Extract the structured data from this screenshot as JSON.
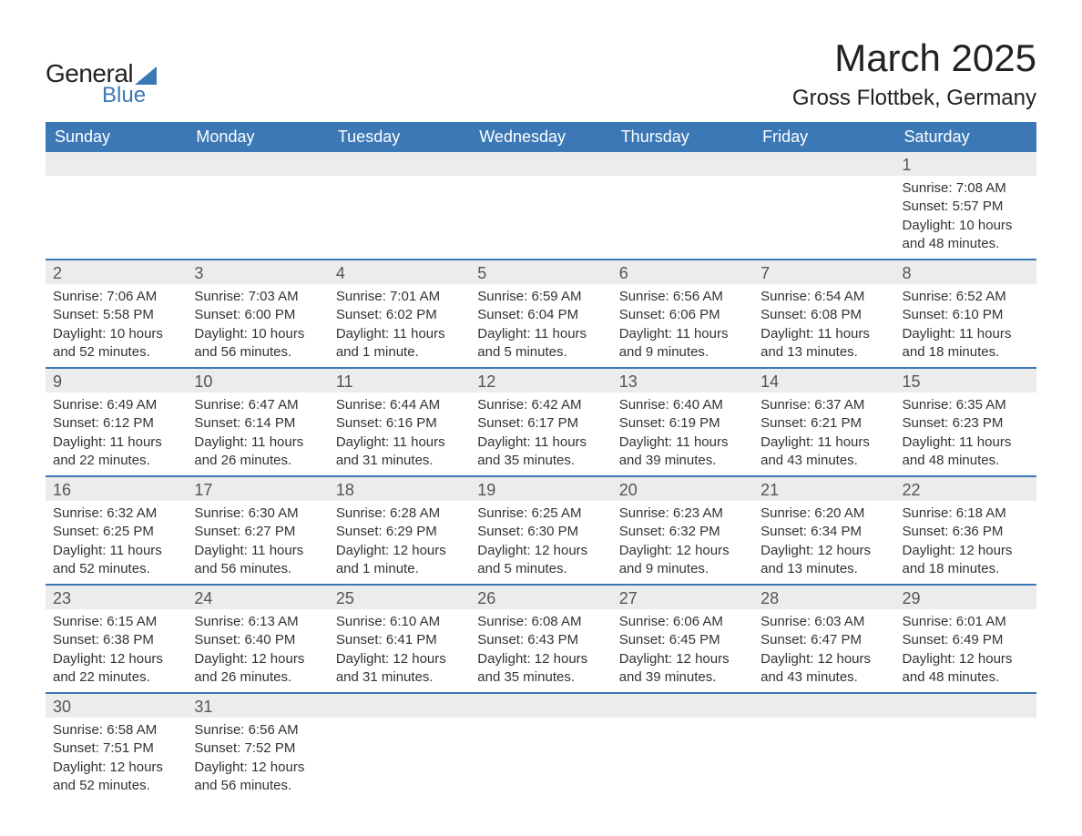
{
  "brand": {
    "word1": "General",
    "word2": "Blue",
    "accent_color": "#3b78b5"
  },
  "header": {
    "month_year": "March 2025",
    "location": "Gross Flottbek, Germany"
  },
  "styling": {
    "header_bg": "#3b78b5",
    "header_text": "#ffffff",
    "band_bg": "#ececec",
    "row_border": "#3b78b5",
    "body_text": "#333333",
    "title_fontsize_pt": 32,
    "location_fontsize_pt": 18,
    "dow_fontsize_pt": 14,
    "cell_fontsize_pt": 11
  },
  "days_of_week": [
    "Sunday",
    "Monday",
    "Tuesday",
    "Wednesday",
    "Thursday",
    "Friday",
    "Saturday"
  ],
  "weeks": [
    [
      {
        "empty": true
      },
      {
        "empty": true
      },
      {
        "empty": true
      },
      {
        "empty": true
      },
      {
        "empty": true
      },
      {
        "empty": true
      },
      {
        "num": "1",
        "sunrise": "Sunrise: 7:08 AM",
        "sunset": "Sunset: 5:57 PM",
        "dl1": "Daylight: 10 hours",
        "dl2": "and 48 minutes."
      }
    ],
    [
      {
        "num": "2",
        "sunrise": "Sunrise: 7:06 AM",
        "sunset": "Sunset: 5:58 PM",
        "dl1": "Daylight: 10 hours",
        "dl2": "and 52 minutes."
      },
      {
        "num": "3",
        "sunrise": "Sunrise: 7:03 AM",
        "sunset": "Sunset: 6:00 PM",
        "dl1": "Daylight: 10 hours",
        "dl2": "and 56 minutes."
      },
      {
        "num": "4",
        "sunrise": "Sunrise: 7:01 AM",
        "sunset": "Sunset: 6:02 PM",
        "dl1": "Daylight: 11 hours",
        "dl2": "and 1 minute."
      },
      {
        "num": "5",
        "sunrise": "Sunrise: 6:59 AM",
        "sunset": "Sunset: 6:04 PM",
        "dl1": "Daylight: 11 hours",
        "dl2": "and 5 minutes."
      },
      {
        "num": "6",
        "sunrise": "Sunrise: 6:56 AM",
        "sunset": "Sunset: 6:06 PM",
        "dl1": "Daylight: 11 hours",
        "dl2": "and 9 minutes."
      },
      {
        "num": "7",
        "sunrise": "Sunrise: 6:54 AM",
        "sunset": "Sunset: 6:08 PM",
        "dl1": "Daylight: 11 hours",
        "dl2": "and 13 minutes."
      },
      {
        "num": "8",
        "sunrise": "Sunrise: 6:52 AM",
        "sunset": "Sunset: 6:10 PM",
        "dl1": "Daylight: 11 hours",
        "dl2": "and 18 minutes."
      }
    ],
    [
      {
        "num": "9",
        "sunrise": "Sunrise: 6:49 AM",
        "sunset": "Sunset: 6:12 PM",
        "dl1": "Daylight: 11 hours",
        "dl2": "and 22 minutes."
      },
      {
        "num": "10",
        "sunrise": "Sunrise: 6:47 AM",
        "sunset": "Sunset: 6:14 PM",
        "dl1": "Daylight: 11 hours",
        "dl2": "and 26 minutes."
      },
      {
        "num": "11",
        "sunrise": "Sunrise: 6:44 AM",
        "sunset": "Sunset: 6:16 PM",
        "dl1": "Daylight: 11 hours",
        "dl2": "and 31 minutes."
      },
      {
        "num": "12",
        "sunrise": "Sunrise: 6:42 AM",
        "sunset": "Sunset: 6:17 PM",
        "dl1": "Daylight: 11 hours",
        "dl2": "and 35 minutes."
      },
      {
        "num": "13",
        "sunrise": "Sunrise: 6:40 AM",
        "sunset": "Sunset: 6:19 PM",
        "dl1": "Daylight: 11 hours",
        "dl2": "and 39 minutes."
      },
      {
        "num": "14",
        "sunrise": "Sunrise: 6:37 AM",
        "sunset": "Sunset: 6:21 PM",
        "dl1": "Daylight: 11 hours",
        "dl2": "and 43 minutes."
      },
      {
        "num": "15",
        "sunrise": "Sunrise: 6:35 AM",
        "sunset": "Sunset: 6:23 PM",
        "dl1": "Daylight: 11 hours",
        "dl2": "and 48 minutes."
      }
    ],
    [
      {
        "num": "16",
        "sunrise": "Sunrise: 6:32 AM",
        "sunset": "Sunset: 6:25 PM",
        "dl1": "Daylight: 11 hours",
        "dl2": "and 52 minutes."
      },
      {
        "num": "17",
        "sunrise": "Sunrise: 6:30 AM",
        "sunset": "Sunset: 6:27 PM",
        "dl1": "Daylight: 11 hours",
        "dl2": "and 56 minutes."
      },
      {
        "num": "18",
        "sunrise": "Sunrise: 6:28 AM",
        "sunset": "Sunset: 6:29 PM",
        "dl1": "Daylight: 12 hours",
        "dl2": "and 1 minute."
      },
      {
        "num": "19",
        "sunrise": "Sunrise: 6:25 AM",
        "sunset": "Sunset: 6:30 PM",
        "dl1": "Daylight: 12 hours",
        "dl2": "and 5 minutes."
      },
      {
        "num": "20",
        "sunrise": "Sunrise: 6:23 AM",
        "sunset": "Sunset: 6:32 PM",
        "dl1": "Daylight: 12 hours",
        "dl2": "and 9 minutes."
      },
      {
        "num": "21",
        "sunrise": "Sunrise: 6:20 AM",
        "sunset": "Sunset: 6:34 PM",
        "dl1": "Daylight: 12 hours",
        "dl2": "and 13 minutes."
      },
      {
        "num": "22",
        "sunrise": "Sunrise: 6:18 AM",
        "sunset": "Sunset: 6:36 PM",
        "dl1": "Daylight: 12 hours",
        "dl2": "and 18 minutes."
      }
    ],
    [
      {
        "num": "23",
        "sunrise": "Sunrise: 6:15 AM",
        "sunset": "Sunset: 6:38 PM",
        "dl1": "Daylight: 12 hours",
        "dl2": "and 22 minutes."
      },
      {
        "num": "24",
        "sunrise": "Sunrise: 6:13 AM",
        "sunset": "Sunset: 6:40 PM",
        "dl1": "Daylight: 12 hours",
        "dl2": "and 26 minutes."
      },
      {
        "num": "25",
        "sunrise": "Sunrise: 6:10 AM",
        "sunset": "Sunset: 6:41 PM",
        "dl1": "Daylight: 12 hours",
        "dl2": "and 31 minutes."
      },
      {
        "num": "26",
        "sunrise": "Sunrise: 6:08 AM",
        "sunset": "Sunset: 6:43 PM",
        "dl1": "Daylight: 12 hours",
        "dl2": "and 35 minutes."
      },
      {
        "num": "27",
        "sunrise": "Sunrise: 6:06 AM",
        "sunset": "Sunset: 6:45 PM",
        "dl1": "Daylight: 12 hours",
        "dl2": "and 39 minutes."
      },
      {
        "num": "28",
        "sunrise": "Sunrise: 6:03 AM",
        "sunset": "Sunset: 6:47 PM",
        "dl1": "Daylight: 12 hours",
        "dl2": "and 43 minutes."
      },
      {
        "num": "29",
        "sunrise": "Sunrise: 6:01 AM",
        "sunset": "Sunset: 6:49 PM",
        "dl1": "Daylight: 12 hours",
        "dl2": "and 48 minutes."
      }
    ],
    [
      {
        "num": "30",
        "sunrise": "Sunrise: 6:58 AM",
        "sunset": "Sunset: 7:51 PM",
        "dl1": "Daylight: 12 hours",
        "dl2": "and 52 minutes."
      },
      {
        "num": "31",
        "sunrise": "Sunrise: 6:56 AM",
        "sunset": "Sunset: 7:52 PM",
        "dl1": "Daylight: 12 hours",
        "dl2": "and 56 minutes."
      },
      {
        "empty": true
      },
      {
        "empty": true
      },
      {
        "empty": true
      },
      {
        "empty": true
      },
      {
        "empty": true
      }
    ]
  ]
}
